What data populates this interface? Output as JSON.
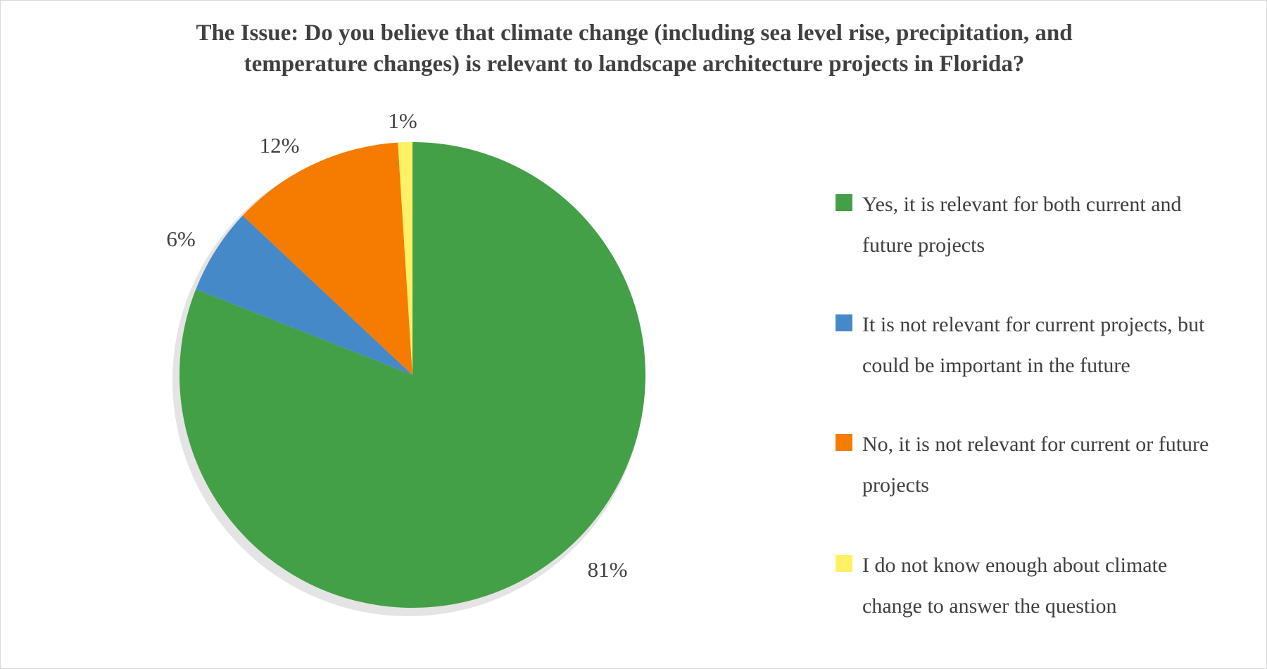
{
  "chart_data": {
    "type": "pie",
    "title": "The Issue: Do you believe that climate change (including sea level rise, precipitation, and temperature changes) is relevant to landscape architecture projects in Florida?",
    "title_lines": [
      "The Issue: Do you believe that climate change (including sea level rise, precipitation, and",
      "temperature changes) is relevant to landscape architecture projects in Florida?"
    ],
    "start_angle": "12 o'clock",
    "direction": "clockwise",
    "legend_position": "right",
    "slices": [
      {
        "name": "Yes, it is relevant for both current and future projects",
        "lines": [
          "Yes, it is relevant for both current and",
          "future projects"
        ],
        "value": 81,
        "label": "81%",
        "color": "#43A047"
      },
      {
        "name": "It is not relevant for current projects, but could be important in the future",
        "lines": [
          "It is not relevant for current projects, but",
          "could be important in the future"
        ],
        "value": 6,
        "label": "6%",
        "color": "#4689C8"
      },
      {
        "name": "No, it is not relevant for current or future projects",
        "lines": [
          "No, it is not relevant for current or future",
          "projects"
        ],
        "value": 12,
        "label": "12%",
        "color": "#F57C00"
      },
      {
        "name": "I do not know enough about climate change to answer the question",
        "lines": [
          "I do not know enough about climate",
          "change to answer the question"
        ],
        "value": 1,
        "label": "1%",
        "color": "#FFF066"
      }
    ]
  }
}
